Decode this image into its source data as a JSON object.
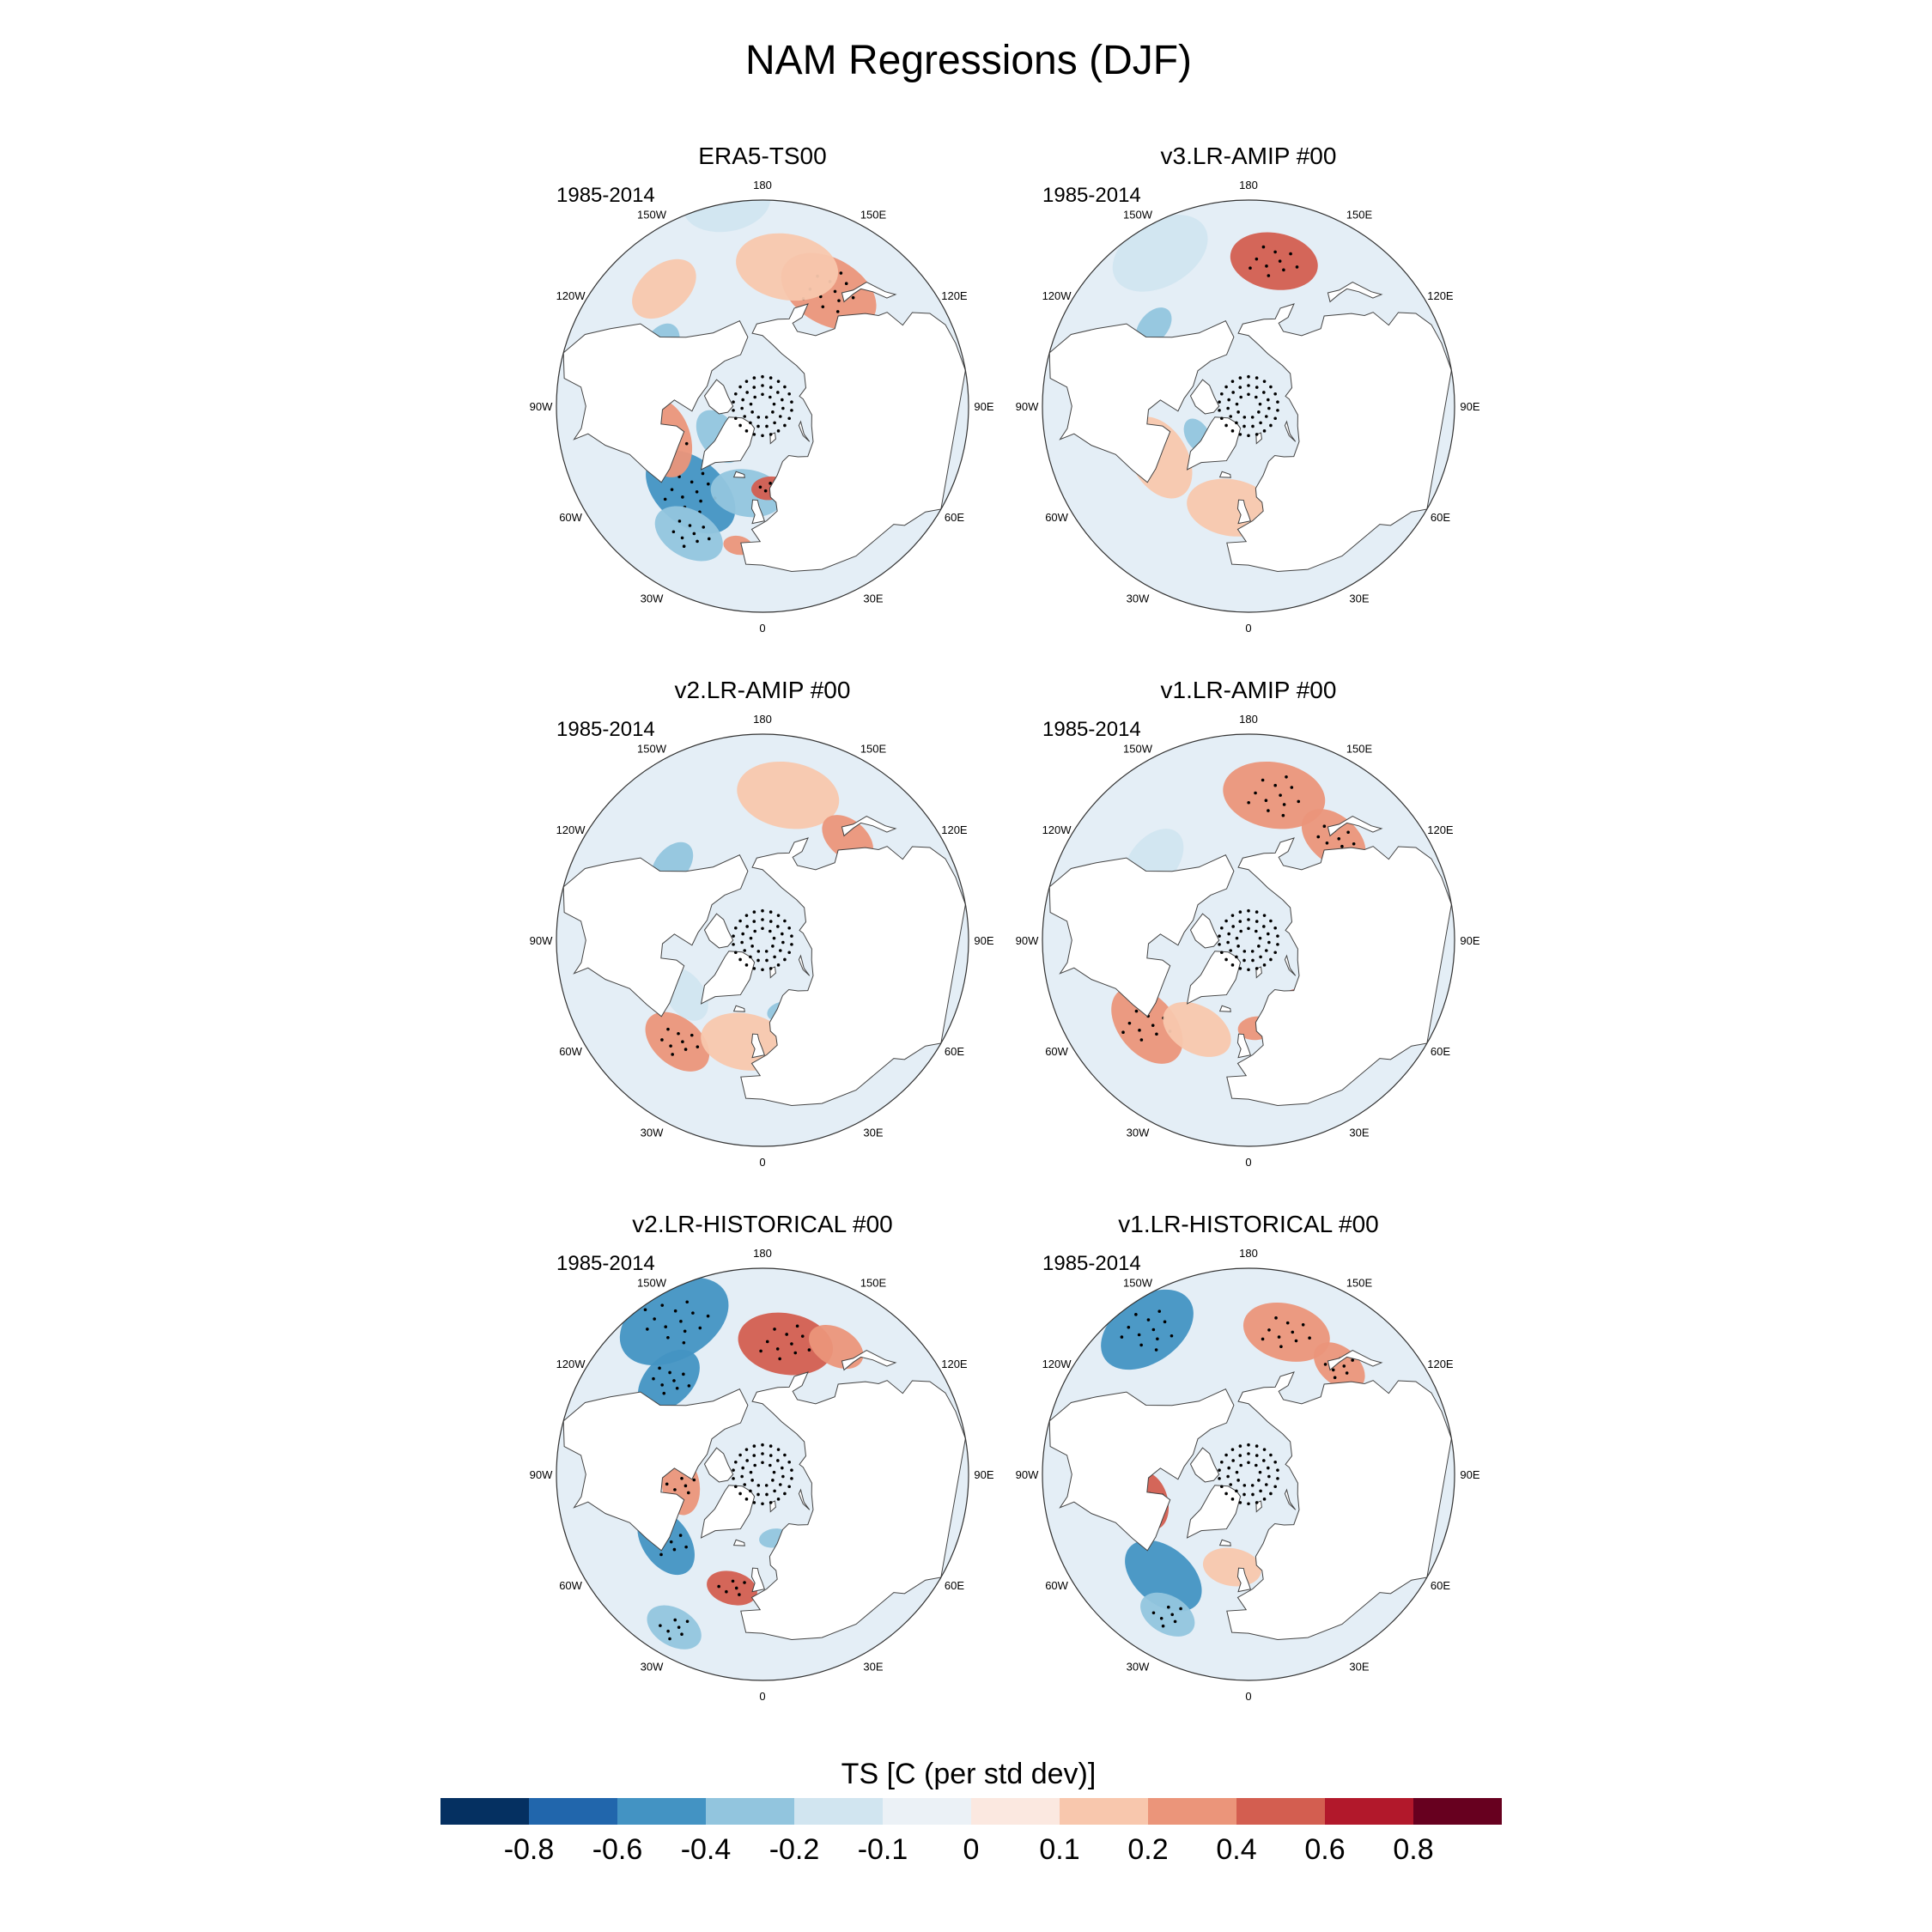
{
  "figure": {
    "title": "NAM Regressions (DJF)"
  },
  "panels": [
    {
      "id": "era5",
      "title": "ERA5-TS00",
      "period": "1985-2014",
      "blobs": [
        {
          "lat": 52,
          "lon": -40,
          "level": -3,
          "r": 14,
          "stip": true
        },
        {
          "lat": 40,
          "lon": -30,
          "level": -2,
          "r": 10,
          "stip": true
        },
        {
          "lat": 60,
          "lon": -10,
          "level": -2,
          "r": 10
        },
        {
          "lat": 55,
          "lon": -72,
          "level": 2,
          "r": 11,
          "stip": true
        },
        {
          "lat": 72,
          "lon": -55,
          "level": -2,
          "r": 8
        },
        {
          "lat": 62,
          "lon": 5,
          "level": 3,
          "r": 5,
          "stip": true
        },
        {
          "lat": 42,
          "lon": -10,
          "level": 2,
          "r": 4
        },
        {
          "lat": 45,
          "lon": 150,
          "level": 2,
          "r": 14,
          "stip": true
        },
        {
          "lat": 42,
          "lon": 170,
          "level": 1,
          "r": 14
        },
        {
          "lat": 38,
          "lon": -140,
          "level": 1,
          "r": 10
        },
        {
          "lat": 50,
          "lon": -120,
          "level": -2,
          "r": 7,
          "stip": true
        },
        {
          "lat": 20,
          "lon": -170,
          "level": -1,
          "r": 12
        }
      ]
    },
    {
      "id": "v3amip",
      "title": "v3.LR-AMIP  #00",
      "period": "1985-2014",
      "blobs": [
        {
          "lat": 40,
          "lon": 170,
          "level": 3,
          "r": 12,
          "stip": true
        },
        {
          "lat": 30,
          "lon": -150,
          "level": -1,
          "r": 14
        },
        {
          "lat": 50,
          "lon": 120,
          "level": 2,
          "r": 6
        },
        {
          "lat": 55,
          "lon": -60,
          "level": 1,
          "r": 12
        },
        {
          "lat": 62,
          "lon": 30,
          "level": 3,
          "r": 4,
          "stip": true
        },
        {
          "lat": 55,
          "lon": -10,
          "level": 1,
          "r": 12
        },
        {
          "lat": 70,
          "lon": -60,
          "level": -2,
          "r": 5
        },
        {
          "lat": 48,
          "lon": -130,
          "level": -2,
          "r": 6
        }
      ]
    },
    {
      "id": "v2amip",
      "title": "v2.LR-AMIP  #00",
      "period": "1985-2014",
      "blobs": [
        {
          "lat": 40,
          "lon": 170,
          "level": 1,
          "r": 14
        },
        {
          "lat": 45,
          "lon": 140,
          "level": 2,
          "r": 8
        },
        {
          "lat": 50,
          "lon": -130,
          "level": -2,
          "r": 7
        },
        {
          "lat": 45,
          "lon": -40,
          "level": 2,
          "r": 10,
          "stip": true
        },
        {
          "lat": 58,
          "lon": -55,
          "level": -1,
          "r": 8
        },
        {
          "lat": 65,
          "lon": 15,
          "level": -2,
          "r": 4
        },
        {
          "lat": 55,
          "lon": -10,
          "level": 1,
          "r": 12
        }
      ]
    },
    {
      "id": "v1amip",
      "title": "v1.LR-AMIP  #00",
      "period": "1985-2014",
      "blobs": [
        {
          "lat": 40,
          "lon": 170,
          "level": 2,
          "r": 14,
          "stip": true
        },
        {
          "lat": 45,
          "lon": 140,
          "level": 2,
          "r": 10,
          "stip": true
        },
        {
          "lat": 45,
          "lon": -50,
          "level": 2,
          "r": 12,
          "stip": true
        },
        {
          "lat": 55,
          "lon": -30,
          "level": 1,
          "r": 10
        },
        {
          "lat": 65,
          "lon": 35,
          "level": 3,
          "r": 4,
          "stip": true
        },
        {
          "lat": 60,
          "lon": 5,
          "level": 2,
          "r": 5
        },
        {
          "lat": 48,
          "lon": -130,
          "level": -1,
          "r": 10
        }
      ]
    },
    {
      "id": "v2hist",
      "title": "v2.LR-HISTORICAL  #00",
      "period": "1985-2014",
      "blobs": [
        {
          "lat": 30,
          "lon": -150,
          "level": -3,
          "r": 16,
          "stip": true
        },
        {
          "lat": 45,
          "lon": -135,
          "level": -3,
          "r": 10,
          "stip": true
        },
        {
          "lat": 45,
          "lon": 170,
          "level": 3,
          "r": 13,
          "stip": true
        },
        {
          "lat": 40,
          "lon": 150,
          "level": 2,
          "r": 8
        },
        {
          "lat": 50,
          "lon": -55,
          "level": -3,
          "r": 10,
          "stip": true
        },
        {
          "lat": 50,
          "lon": -15,
          "level": 3,
          "r": 7,
          "stip": true
        },
        {
          "lat": 62,
          "lon": -82,
          "level": 2,
          "r": 8,
          "stip": true
        },
        {
          "lat": 30,
          "lon": -30,
          "level": -2,
          "r": 8,
          "stip": true
        },
        {
          "lat": 68,
          "lon": 10,
          "level": -2,
          "r": 4
        },
        {
          "lat": 60,
          "lon": 25,
          "level": 2,
          "r": 6
        }
      ]
    },
    {
      "id": "v1hist",
      "title": "v1.LR-HISTORICAL  #00",
      "period": "1985-2014",
      "blobs": [
        {
          "lat": 30,
          "lon": -145,
          "level": -3,
          "r": 14,
          "stip": true
        },
        {
          "lat": 45,
          "lon": -40,
          "level": -3,
          "r": 12
        },
        {
          "lat": 55,
          "lon": -75,
          "level": 3,
          "r": 8,
          "stip": true
        },
        {
          "lat": 35,
          "lon": -30,
          "level": -2,
          "r": 8,
          "stip": true
        },
        {
          "lat": 40,
          "lon": 165,
          "level": 2,
          "r": 12,
          "stip": true
        },
        {
          "lat": 42,
          "lon": 140,
          "level": 2,
          "r": 8,
          "stip": true
        },
        {
          "lat": 58,
          "lon": 45,
          "level": -3,
          "r": 4
        },
        {
          "lat": 58,
          "lon": -10,
          "level": 1,
          "r": 8
        }
      ]
    }
  ],
  "lon_labels": [
    "180",
    "150E",
    "120E",
    "90E",
    "60E",
    "30E",
    "0",
    "30W",
    "60W",
    "90W",
    "120W",
    "150W"
  ],
  "colorbar": {
    "label": "TS [C (per std dev)]",
    "colors": [
      "#053061",
      "#2166ac",
      "#4393c3",
      "#92c5de",
      "#d1e5f0",
      "#ebf1f6",
      "#fbe8e0",
      "#f8c7ad",
      "#eb957a",
      "#d35e50",
      "#b2182b",
      "#67001f"
    ],
    "ticks": [
      "-0.8",
      "-0.6",
      "-0.4",
      "-0.2",
      "-0.1",
      "0",
      "0.1",
      "0.2",
      "0.4",
      "0.6",
      "0.8"
    ]
  },
  "styles": {
    "land_color": "#ffffff",
    "ocean_base": "#e4eef6",
    "coast_color": "#444444",
    "stipple_color": "#000000"
  }
}
